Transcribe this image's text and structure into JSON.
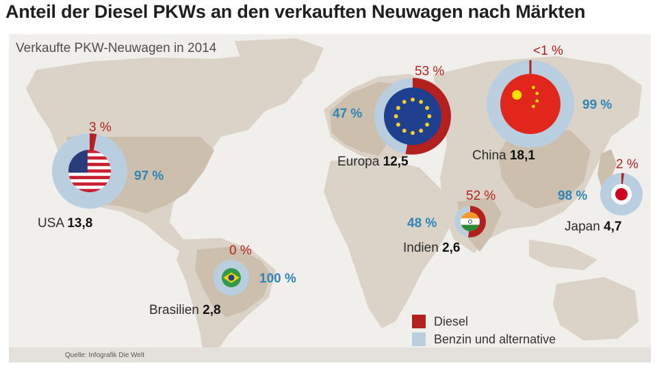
{
  "title": "Anteil der Diesel PKWs an den verkauften Neuwagen nach Märkten",
  "subtitle": "Verkaufte PKW-Neuwagen in 2014",
  "source": "Quelle: Infografik Die Welt",
  "colors": {
    "diesel": "#b3201e",
    "benzin": "#b9cfe0",
    "land": "#dcd3c8",
    "highlight": "#cdbfae",
    "water": "#f1efec"
  },
  "legend": {
    "diesel": "Diesel",
    "benzin": "Benzin und alternative"
  },
  "markets": [
    {
      "country": "USA",
      "sales": "13,8",
      "diesel_label": "3 %",
      "benzin_label": "97 %",
      "diesel_share": 0.03,
      "flag": "usa-flag"
    },
    {
      "country": "Europa",
      "sales": "12,5",
      "diesel_label": "53 %",
      "benzin_label": "47 %",
      "diesel_share": 0.53,
      "flag": "eu-flag"
    },
    {
      "country": "China",
      "sales": "18,1",
      "diesel_label": "<1 %",
      "benzin_label": "99 %",
      "diesel_share": 0.005,
      "flag": "china-flag"
    },
    {
      "country": "Japan",
      "sales": "4,7",
      "diesel_label": "2 %",
      "benzin_label": "98 %",
      "diesel_share": 0.02,
      "flag": "japan-flag"
    },
    {
      "country": "Indien",
      "sales": "2,6",
      "diesel_label": "52 %",
      "benzin_label": "48 %",
      "diesel_share": 0.52,
      "flag": "india-flag"
    },
    {
      "country": "Brasilien",
      "sales": "2,8",
      "diesel_label": "0 %",
      "benzin_label": "100 %",
      "diesel_share": 0.0,
      "flag": "brazil-flag"
    }
  ]
}
